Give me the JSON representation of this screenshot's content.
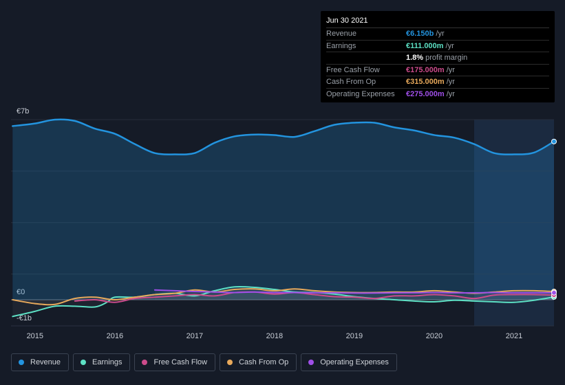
{
  "tooltip": {
    "date": "Jun 30 2021",
    "rows": [
      {
        "label": "Revenue",
        "value": "€6.150b",
        "unit": " /yr",
        "color": "#2394df"
      },
      {
        "label": "Earnings",
        "value": "€111.000m",
        "unit": " /yr",
        "color": "#5de1c5"
      },
      {
        "label": "",
        "value": "1.8%",
        "unit": " profit margin",
        "color": "#ffffff"
      },
      {
        "label": "Free Cash Flow",
        "value": "€175.000m",
        "unit": " /yr",
        "color": "#cc4b8b"
      },
      {
        "label": "Cash From Op",
        "value": "€315.000m",
        "unit": " /yr",
        "color": "#e8a95b"
      },
      {
        "label": "Operating Expenses",
        "value": "€275.000m",
        "unit": " /yr",
        "color": "#9f4fe8"
      }
    ]
  },
  "legend": [
    {
      "label": "Revenue",
      "color": "#2394df"
    },
    {
      "label": "Earnings",
      "color": "#5de1c5"
    },
    {
      "label": "Free Cash Flow",
      "color": "#cc4b8b"
    },
    {
      "label": "Cash From Op",
      "color": "#e8a95b"
    },
    {
      "label": "Operating Expenses",
      "color": "#9f4fe8"
    }
  ],
  "chart_data": {
    "type": "area",
    "ylim": [
      -1.0,
      7.0
    ],
    "xlim": [
      2014.7,
      2021.5
    ],
    "y_tick_labels": [
      {
        "value": 7,
        "label": "€7b"
      },
      {
        "value": 0,
        "label": "€0"
      },
      {
        "value": -0.7,
        "label": "-€1b"
      }
    ],
    "x_tick_labels": [
      "2015",
      "2016",
      "2017",
      "2018",
      "2019",
      "2020",
      "2021"
    ],
    "x_ticks": [
      2015,
      2016,
      2017,
      2018,
      2019,
      2020,
      2021
    ],
    "highlight_start": 2020.5,
    "series": [
      {
        "name": "Revenue",
        "color": "#2394df",
        "fill": true,
        "width": 2.5,
        "x": [
          2014.72,
          2015.0,
          2015.25,
          2015.5,
          2015.75,
          2016.0,
          2016.25,
          2016.5,
          2016.75,
          2017.0,
          2017.25,
          2017.5,
          2017.75,
          2018.0,
          2018.25,
          2018.5,
          2018.75,
          2019.0,
          2019.25,
          2019.5,
          2019.75,
          2020.0,
          2020.25,
          2020.5,
          2020.75,
          2021.0,
          2021.25,
          2021.5
        ],
        "y": [
          6.75,
          6.85,
          7.0,
          6.95,
          6.65,
          6.45,
          6.05,
          5.7,
          5.65,
          5.7,
          6.1,
          6.35,
          6.42,
          6.4,
          6.33,
          6.55,
          6.8,
          6.88,
          6.88,
          6.7,
          6.58,
          6.4,
          6.3,
          6.05,
          5.7,
          5.65,
          5.72,
          6.15
        ]
      },
      {
        "name": "Earnings",
        "color": "#5de1c5",
        "fill": false,
        "width": 2,
        "x": [
          2014.72,
          2015.0,
          2015.25,
          2015.5,
          2015.75,
          2015.9,
          2016.0,
          2016.25,
          2016.5,
          2016.75,
          2017.0,
          2017.25,
          2017.5,
          2017.75,
          2018.0,
          2018.25,
          2018.5,
          2018.75,
          2019.0,
          2019.25,
          2019.5,
          2019.75,
          2020.0,
          2020.25,
          2020.5,
          2020.75,
          2021.0,
          2021.25,
          2021.5
        ],
        "y": [
          -0.65,
          -0.45,
          -0.25,
          -0.25,
          -0.28,
          -0.1,
          0.1,
          0.1,
          0.2,
          0.25,
          0.15,
          0.35,
          0.5,
          0.48,
          0.4,
          0.3,
          0.28,
          0.22,
          0.12,
          0.05,
          0.0,
          -0.05,
          -0.08,
          -0.02,
          -0.05,
          -0.08,
          -0.1,
          -0.02,
          0.11
        ]
      },
      {
        "name": "Free Cash Flow",
        "color": "#cc4b8b",
        "fill": false,
        "width": 2,
        "x": [
          2015.5,
          2015.75,
          2016.0,
          2016.25,
          2016.5,
          2016.75,
          2017.0,
          2017.25,
          2017.5,
          2017.75,
          2018.0,
          2018.25,
          2018.5,
          2018.75,
          2019.0,
          2019.25,
          2019.5,
          2019.75,
          2020.0,
          2020.25,
          2020.5,
          2020.75,
          2021.0,
          2021.25,
          2021.5
        ],
        "y": [
          -0.05,
          0.0,
          -0.1,
          0.05,
          0.1,
          0.15,
          0.2,
          0.15,
          0.28,
          0.3,
          0.22,
          0.28,
          0.2,
          0.12,
          0.1,
          0.05,
          0.15,
          0.15,
          0.2,
          0.15,
          0.05,
          0.18,
          0.2,
          0.2,
          0.18
        ]
      },
      {
        "name": "Cash From Op",
        "color": "#e8a95b",
        "fill": false,
        "width": 2,
        "x": [
          2014.72,
          2015.0,
          2015.25,
          2015.5,
          2015.75,
          2016.0,
          2016.25,
          2016.5,
          2016.75,
          2017.0,
          2017.25,
          2017.5,
          2017.75,
          2018.0,
          2018.25,
          2018.5,
          2018.75,
          2019.0,
          2019.25,
          2019.5,
          2019.75,
          2020.0,
          2020.25,
          2020.5,
          2020.75,
          2021.0,
          2021.25,
          2021.5
        ],
        "y": [
          0.0,
          -0.15,
          -0.18,
          0.05,
          0.1,
          0.0,
          0.1,
          0.2,
          0.25,
          0.38,
          0.3,
          0.4,
          0.42,
          0.35,
          0.42,
          0.35,
          0.3,
          0.28,
          0.28,
          0.3,
          0.3,
          0.35,
          0.3,
          0.25,
          0.3,
          0.35,
          0.35,
          0.32
        ]
      },
      {
        "name": "Operating Expenses",
        "color": "#9f4fe8",
        "fill": false,
        "width": 2,
        "x": [
          2016.5,
          2016.75,
          2017.0,
          2017.25,
          2017.5,
          2017.75,
          2018.0,
          2018.25,
          2018.5,
          2018.75,
          2019.0,
          2019.25,
          2019.5,
          2019.75,
          2020.0,
          2020.25,
          2020.5,
          2020.75,
          2021.0,
          2021.25,
          2021.5
        ],
        "y": [
          0.38,
          0.35,
          0.32,
          0.3,
          0.28,
          0.3,
          0.28,
          0.28,
          0.27,
          0.27,
          0.26,
          0.26,
          0.27,
          0.27,
          0.28,
          0.27,
          0.27,
          0.28,
          0.27,
          0.27,
          0.275
        ]
      }
    ]
  }
}
